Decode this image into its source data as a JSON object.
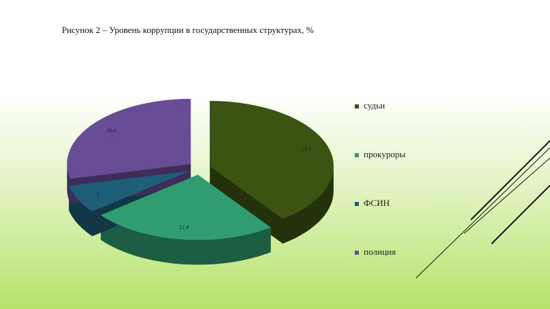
{
  "chart_data": {
    "type": "pie",
    "title": "Рисунок 2 – Уровень коррупции в государственных структурах, %",
    "categories": [
      "судьи",
      "прокуроры",
      "ФСИН",
      "полиция"
    ],
    "values": [
      28.5,
      17.4,
      5,
      20.4
    ],
    "value_labels": [
      "28,5",
      "17,4",
      "5",
      "20,4"
    ],
    "colors": [
      "#3b5412",
      "#2f9d70",
      "#1e5e78",
      "#684c95"
    ],
    "legend": "right"
  }
}
